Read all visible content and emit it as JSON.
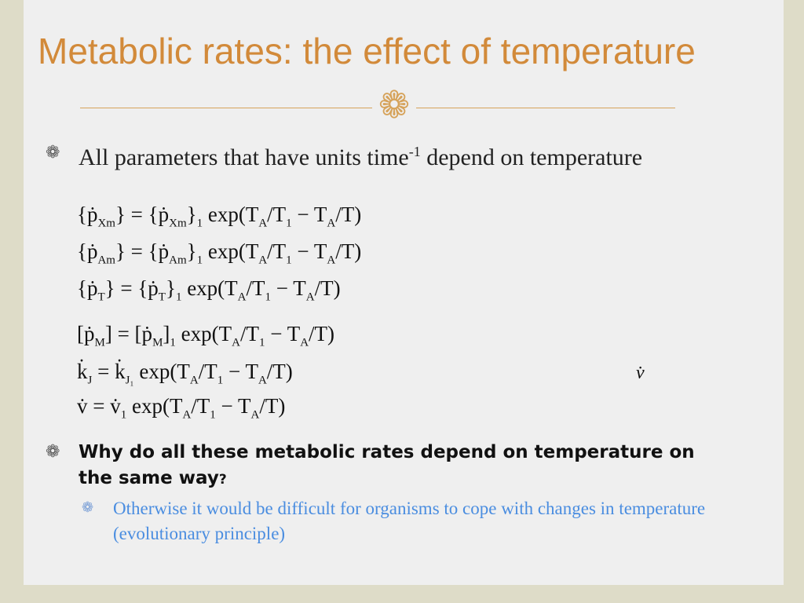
{
  "title": "Metabolic rates: the effect of temperature",
  "ornament_icon": "curl-ornament-icon",
  "bullet_icon": "curl-bullet-icon",
  "bullet1": {
    "text_a": "All parameters that have units time",
    "sup": "-1",
    "text_b": " depend on temperature"
  },
  "equations": [
    {
      "lhs": "{ṗ",
      "lhs_sub": "Xm",
      "lhs_end": "} = {ṗ",
      "rhs_sub": "Xm",
      "rhs_end": "}",
      "one": "1",
      "body": " exp(T",
      "a1": "A",
      "m1": "/T",
      "one2": "1",
      "m2": " − T",
      "a2": "A",
      "m3": "/T)"
    },
    {
      "lhs": "{ṗ",
      "lhs_sub": "Am",
      "lhs_end": "} = {ṗ",
      "rhs_sub": "Am",
      "rhs_end": "}",
      "one": "1",
      "body": " exp(T",
      "a1": "A",
      "m1": "/T",
      "one2": "1",
      "m2": " − T",
      "a2": "A",
      "m3": "/T)"
    },
    {
      "lhs": "{ṗ",
      "lhs_sub": "T",
      "lhs_end": "} = {ṗ",
      "rhs_sub": "T",
      "rhs_end": "}",
      "one": "1",
      "body": " exp(T",
      "a1": "A",
      "m1": "/T",
      "one2": "1",
      "m2": " − T",
      "a2": "A",
      "m3": "/T)"
    },
    {
      "lhs": "[ṗ",
      "lhs_sub": "M",
      "lhs_end": "] = [ṗ",
      "rhs_sub": "M",
      "rhs_end": "]",
      "one": "1",
      "body": " exp(T",
      "a1": "A",
      "m1": "/T",
      "one2": "1",
      "m2": " − T",
      "a2": "A",
      "m3": "/T)"
    },
    {
      "lhs": "k̇",
      "lhs_sub": "J",
      "lhs_end": " = k̇",
      "rhs_sub": "J₁",
      "rhs_end": "",
      "one": "",
      "body": " exp(T",
      "a1": "A",
      "m1": "/T",
      "one2": "1",
      "m2": " − T",
      "a2": "A",
      "m3": "/T)"
    },
    {
      "lhs": "v̇",
      "lhs_sub": "",
      "lhs_end": " = v̇",
      "rhs_sub": "1",
      "rhs_end": "",
      "one": "",
      "body": " exp(T",
      "a1": "A",
      "m1": "/T",
      "one2": "1",
      "m2": " − T",
      "a2": "A",
      "m3": "/T)"
    }
  ],
  "stray_symbol": "v̇",
  "question": {
    "text": "Why do all these metabolic rates depend on temperature on the same way",
    "mark": "?"
  },
  "answer": "Otherwise it would be difficult for organisms to cope with changes in temperature (evolutionary principle)",
  "colors": {
    "title": "#d28a3a",
    "ornament": "#d6a35b",
    "answer": "#4a8de0",
    "background": "#efefef",
    "frame": "#dedcc8"
  }
}
